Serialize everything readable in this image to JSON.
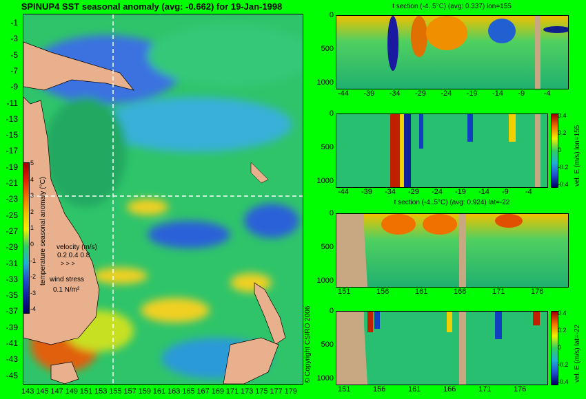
{
  "map": {
    "title": "SPINUP4 SST seasonal anomaly (avg: -0.662) for 19-Jan-1998",
    "y_ticks": [
      "-1",
      "-3",
      "-5",
      "-7",
      "-9",
      "-11",
      "-13",
      "-15",
      "-17",
      "-19",
      "-21",
      "-23",
      "-25",
      "-27",
      "-29",
      "-31",
      "-33",
      "-35",
      "-37",
      "-39",
      "-41",
      "-43",
      "-45"
    ],
    "x_ticks": [
      "143",
      "145",
      "147",
      "149",
      "151",
      "153",
      "155",
      "157",
      "159",
      "161",
      "163",
      "165",
      "167",
      "169",
      "171",
      "173",
      "175",
      "177",
      "179"
    ],
    "colorbar_label": "temperature seasonal anomaly (°C)",
    "colorbar_ticks": [
      "5",
      "4",
      "3",
      "2",
      "1",
      "0",
      "-1",
      "-2",
      "-3",
      "-4"
    ],
    "velocity_label": "velocity (m/s)",
    "velocity_scale": "0.2 0.4 0.8",
    "wind_label": "wind stress",
    "wind_scale": "0.1 N/m²",
    "copyright": "© Copyright CSIRO 2006"
  },
  "panels": {
    "p1_title": "t section (-4..5°C) (avg: 0.337) lon=155",
    "p1_xticks": [
      "-44",
      "-39",
      "-34",
      "-29",
      "-24",
      "-19",
      "-14",
      "-9",
      "-4"
    ],
    "p2_xticks": [
      "-44",
      "-39",
      "-34",
      "-29",
      "-24",
      "-19",
      "-14",
      "-9",
      "-4"
    ],
    "p2_cbar_label": "vel. E (m/s) lon=155",
    "p2_cbar_ticks": [
      "0.4",
      "0.2",
      "0",
      "-0.2",
      "-0.4"
    ],
    "p3_title": "t section (-4..5°C) (avg: 0.924) lat=-22",
    "p3_xticks": [
      "151",
      "156",
      "161",
      "166",
      "171",
      "176"
    ],
    "p4_xticks": [
      "151",
      "156",
      "161",
      "166",
      "171",
      "176"
    ],
    "p4_cbar_label": "vel. E (m/s) lat=-22",
    "p4_cbar_ticks": [
      "0.4",
      "0.2",
      "0",
      "-0.2",
      "-0.4"
    ],
    "depth_ticks": [
      "0",
      "500",
      "1000"
    ]
  },
  "colors": {
    "bg": "#00ff00",
    "land": "#e8b08c",
    "section_land": "#c8a882",
    "crosshair": "#ffffff"
  }
}
